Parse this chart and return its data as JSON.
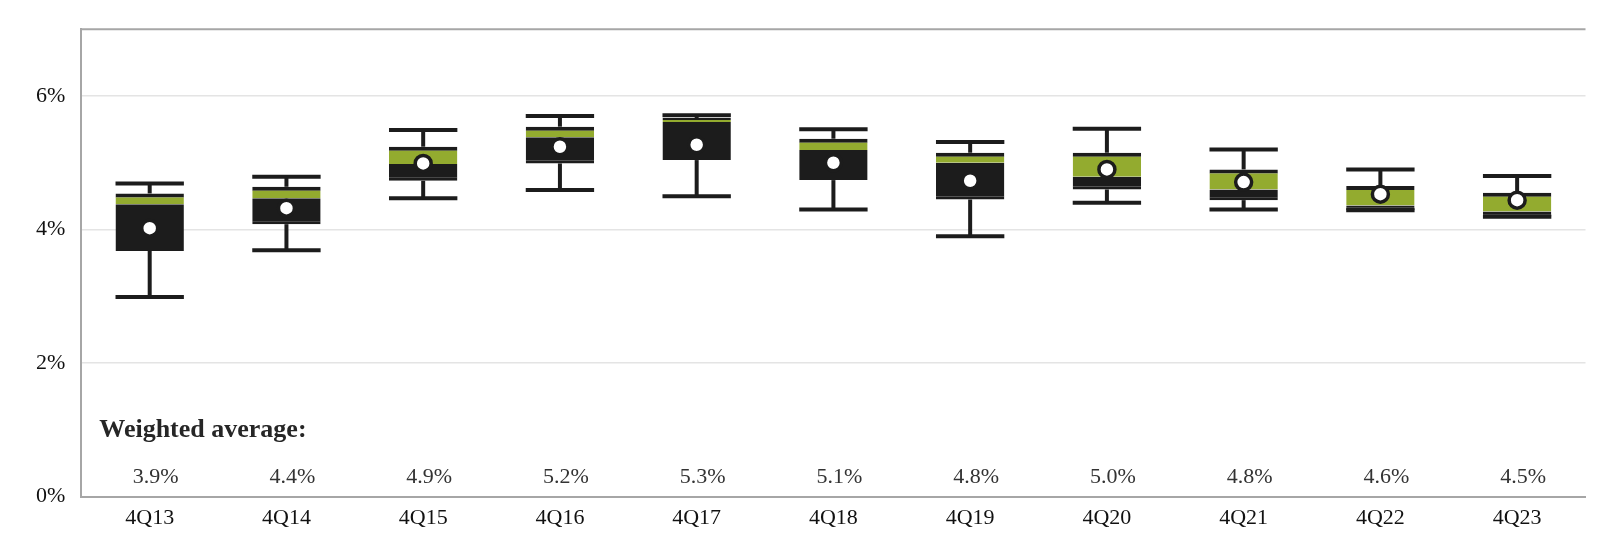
{
  "chart_data": {
    "type": "box",
    "categories": [
      "4Q13",
      "4Q14",
      "4Q15",
      "4Q16",
      "4Q17",
      "4Q18",
      "4Q19",
      "4Q20",
      "4Q21",
      "4Q22",
      "4Q23"
    ],
    "color": "#93ab2f",
    "series": [
      {
        "color": "#1c1c1c",
        "boxes": [
          {
            "low": 2.99,
            "q1": 3.68,
            "median": 4.38,
            "q3": 4.54,
            "high": 4.69,
            "mean": 4.02
          },
          {
            "low": 3.69,
            "q1": 4.08,
            "median": 4.47,
            "q3": 4.64,
            "high": 4.79,
            "mean": 4.32
          },
          {
            "low": 4.47,
            "q1": 4.73,
            "median": 4.98,
            "q3": 5.24,
            "high": 5.49,
            "mean": 4.99
          },
          {
            "low": 4.59,
            "q1": 4.99,
            "median": 5.38,
            "q3": 5.54,
            "high": 5.7,
            "mean": 5.24
          },
          {
            "low": 4.5,
            "q1": 5.04,
            "median": 5.61,
            "q3": 5.67,
            "high": 5.71,
            "mean": 5.27
          },
          {
            "low": 4.3,
            "q1": 4.74,
            "median": 5.19,
            "q3": 5.36,
            "high": 5.5,
            "mean": 5.0
          },
          {
            "low": 3.9,
            "q1": 4.45,
            "median": 5.0,
            "q3": 5.15,
            "high": 5.31,
            "mean": 4.73
          },
          {
            "low": 4.4,
            "q1": 4.6,
            "median": 4.79,
            "q3": 5.15,
            "high": 5.51,
            "mean": 4.9
          },
          {
            "low": 4.3,
            "q1": 4.44,
            "median": 4.6,
            "q3": 4.9,
            "high": 5.2,
            "mean": 4.71
          },
          {
            "low": 4.29,
            "q1": 4.29,
            "median": 4.36,
            "q3": 4.65,
            "high": 4.9,
            "mean": 4.53
          },
          {
            "low": 4.19,
            "q1": 4.19,
            "median": 4.27,
            "q3": 4.55,
            "high": 4.8,
            "mean": 4.44
          }
        ]
      }
    ],
    "ylim": [
      0,
      7
    ],
    "yticks": [
      {
        "value": 0,
        "label": "0%"
      },
      {
        "value": 2,
        "label": "2%"
      },
      {
        "value": 4,
        "label": "4%"
      },
      {
        "value": 6,
        "label": "6%"
      }
    ],
    "grid": "y",
    "legend": false,
    "marker": "circle",
    "annotations": [
      "Weighted average:",
      "3.9%",
      "4.4%",
      "4.9%",
      "5.2%",
      "5.3%",
      "5.1%",
      "4.8%",
      "5.0%",
      "4.8%",
      "4.6%",
      "4.5%"
    ]
  }
}
